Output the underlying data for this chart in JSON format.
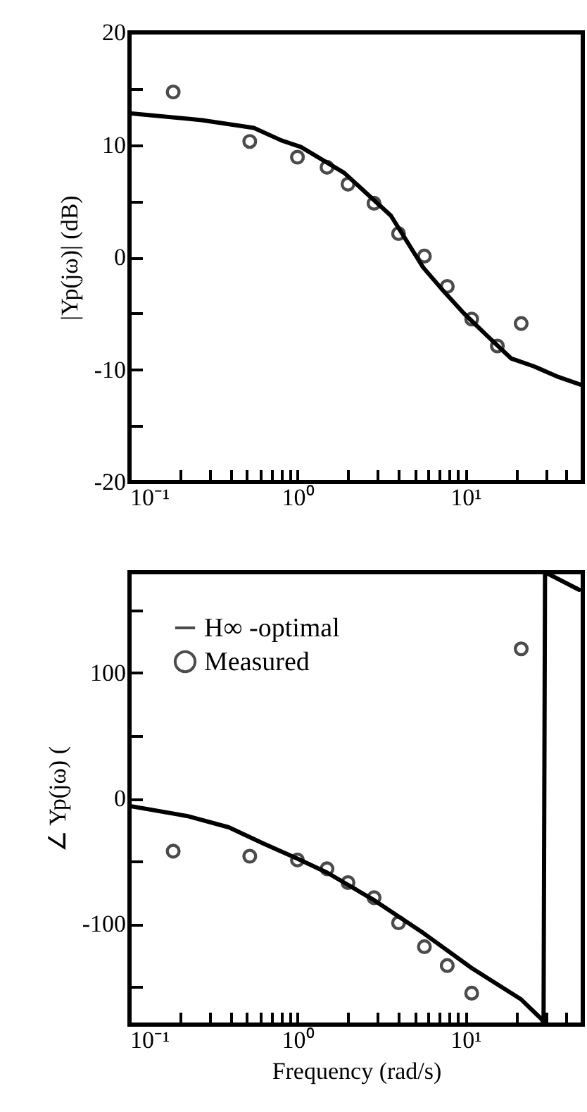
{
  "chart_data": [
    {
      "type": "line",
      "ylabel": "|Yp(jω)| (dB)",
      "log": "x",
      "xlim": [
        0.1,
        50
      ],
      "xticks": [
        {
          "value": 0.1,
          "label": "10⁻¹"
        },
        {
          "value": 0.2,
          "label": null
        },
        {
          "value": 0.3,
          "label": null
        },
        {
          "value": 0.4,
          "label": null
        },
        {
          "value": 0.5,
          "label": null
        },
        {
          "value": 0.6,
          "label": null
        },
        {
          "value": 0.7,
          "label": null
        },
        {
          "value": 0.8,
          "label": null
        },
        {
          "value": 0.9,
          "label": null
        },
        {
          "value": 1,
          "label": "10⁰"
        },
        {
          "value": 2,
          "label": null
        },
        {
          "value": 3,
          "label": null
        },
        {
          "value": 4,
          "label": null
        },
        {
          "value": 5,
          "label": null
        },
        {
          "value": 6,
          "label": null
        },
        {
          "value": 7,
          "label": null
        },
        {
          "value": 8,
          "label": null
        },
        {
          "value": 9,
          "label": null
        },
        {
          "value": 10,
          "label": "10¹"
        },
        {
          "value": 20,
          "label": null
        },
        {
          "value": 30,
          "label": null
        },
        {
          "value": 40,
          "label": null
        }
      ],
      "ylim": [
        -20,
        20
      ],
      "yticks": [
        -20,
        {
          "value": -15,
          "label": null
        },
        -10,
        {
          "value": -5,
          "label": null
        },
        0,
        {
          "value": 5,
          "label": null
        },
        10,
        {
          "value": 15,
          "label": null
        },
        20
      ],
      "series": [
        {
          "type": "line",
          "color": "#000000",
          "x": [
            0.1,
            0.27,
            0.55,
            0.8,
            1.05,
            1.9,
            3.6,
            5.6,
            7.2,
            9.8,
            13.5,
            18.7,
            25.5,
            35,
            50
          ],
          "values": [
            12.8,
            12.2,
            11.5,
            10.4,
            9.8,
            7.5,
            3.7,
            -0.9,
            -2.8,
            -5.0,
            -7.0,
            -9.0,
            -9.7,
            -10.6,
            -11.4
          ]
        },
        {
          "type": "scatter",
          "marker": "circle",
          "color": "#000000",
          "x": [
            0.182,
            0.52,
            1.0,
            1.5,
            2.0,
            2.86,
            4.0,
            5.7,
            7.8,
            10.9,
            15.5,
            21.5
          ],
          "values": [
            14.7,
            10.3,
            8.9,
            8.0,
            6.5,
            4.8,
            2.1,
            0.1,
            -2.6,
            -5.5,
            -7.9,
            -5.9
          ]
        }
      ]
    },
    {
      "type": "line",
      "xlabel": "Frequency (rad/s)",
      "ylabel": "∠ Yp(jω) (",
      "log": "x",
      "legend": "top left",
      "xlim": [
        0.1,
        50
      ],
      "xticks": [
        {
          "value": 0.1,
          "label": "10⁻¹"
        },
        {
          "value": 0.2,
          "label": null
        },
        {
          "value": 0.3,
          "label": null
        },
        {
          "value": 0.4,
          "label": null
        },
        {
          "value": 0.5,
          "label": null
        },
        {
          "value": 0.6,
          "label": null
        },
        {
          "value": 0.7,
          "label": null
        },
        {
          "value": 0.8,
          "label": null
        },
        {
          "value": 0.9,
          "label": null
        },
        {
          "value": 1,
          "label": "10⁰"
        },
        {
          "value": 2,
          "label": null
        },
        {
          "value": 3,
          "label": null
        },
        {
          "value": 4,
          "label": null
        },
        {
          "value": 5,
          "label": null
        },
        {
          "value": 6,
          "label": null
        },
        {
          "value": 7,
          "label": null
        },
        {
          "value": 8,
          "label": null
        },
        {
          "value": 9,
          "label": null
        },
        {
          "value": 10,
          "label": "10¹"
        },
        {
          "value": 20,
          "label": null
        },
        {
          "value": 30,
          "label": null
        },
        {
          "value": 40,
          "label": null
        }
      ],
      "ylim": [
        -180,
        180
      ],
      "yticks": [
        {
          "value": -150,
          "label": null
        },
        -100,
        {
          "value": -50,
          "label": null
        },
        0,
        {
          "value": 50,
          "label": null
        },
        100,
        {
          "value": 150,
          "label": null
        }
      ],
      "series": [
        {
          "type": "line",
          "name": "H∞ -optimal",
          "color": "#000000",
          "x": [
            0.1,
            0.22,
            0.39,
            0.63,
            1.0,
            1.5,
            2.86,
            5.6,
            10.9,
            21.5,
            28.6,
            29.2,
            29.8,
            47.6
          ],
          "values": [
            -6,
            -14,
            -23,
            -36,
            -48,
            -59,
            -81,
            -107,
            -135,
            -160,
            -176,
            -180,
            180,
            166
          ]
        },
        {
          "type": "scatter",
          "name": "Measured",
          "marker": "circle",
          "color": "#000000",
          "x": [
            0.182,
            0.52,
            1.0,
            1.5,
            2.0,
            2.86,
            4.0,
            5.7,
            7.8,
            10.9,
            21.5
          ],
          "values": [
            -42,
            -46,
            -49,
            -56,
            -67,
            -79,
            -99,
            -118,
            -133,
            -155,
            119
          ]
        }
      ]
    }
  ]
}
